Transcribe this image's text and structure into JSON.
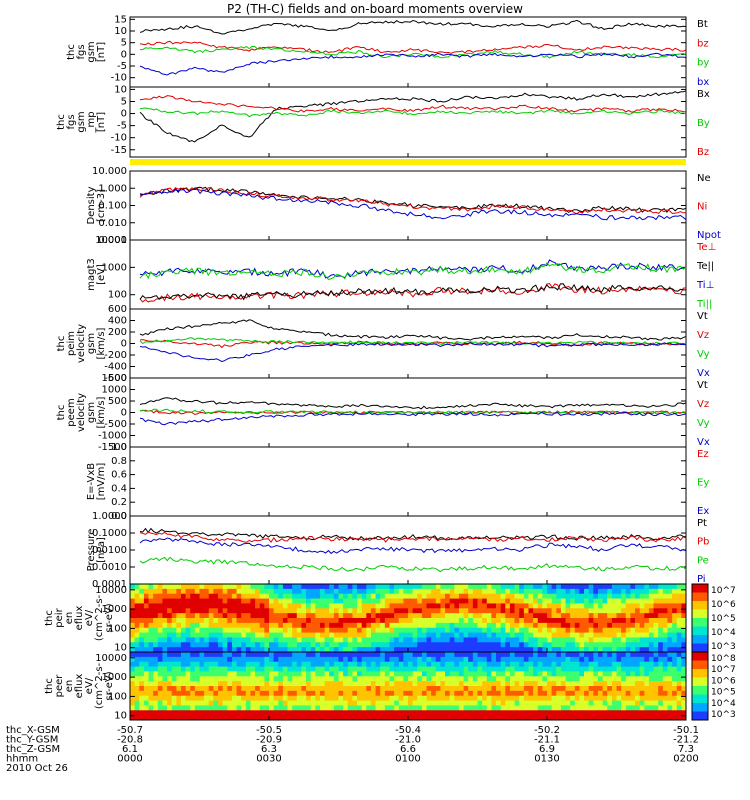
{
  "title": "P2 (TH-C) fields and on-board moments overview",
  "chart_data": [
    {
      "type": "line",
      "panel": "thc fgs gsm",
      "ylabel_lines": [
        "thc",
        "fgs",
        "gsm",
        "[nT]"
      ],
      "yticks": [
        "15",
        "10",
        "5",
        "0",
        "-5",
        "-10"
      ],
      "ylim": [
        -14,
        16
      ],
      "series": [
        {
          "name": "Bt",
          "color": "#000000",
          "values": [
            10,
            11,
            12,
            9,
            11,
            13,
            12,
            10,
            13,
            14,
            14,
            13,
            13,
            12,
            13,
            12,
            14,
            11,
            13,
            12,
            12
          ]
        },
        {
          "name": "bz",
          "color": "#e00000",
          "values": [
            4,
            5,
            5,
            3,
            2,
            3,
            2,
            1,
            3,
            1,
            2,
            1,
            1,
            2,
            3,
            4,
            2,
            3,
            3,
            2,
            2
          ]
        },
        {
          "name": "by",
          "color": "#00cc00",
          "values": [
            2,
            3,
            1,
            2,
            3,
            2,
            1,
            0,
            1,
            -1,
            0,
            -1,
            0,
            1,
            0,
            -1,
            1,
            0,
            0,
            -1,
            0
          ]
        },
        {
          "name": "bx",
          "color": "#0000cc",
          "values": [
            -5,
            -9,
            -6,
            -8,
            -4,
            -3,
            -2,
            -1,
            -1,
            0,
            -1,
            0,
            -1,
            0,
            -1,
            0,
            -1,
            0,
            -1,
            0,
            -1
          ]
        }
      ]
    },
    {
      "type": "line",
      "panel": "thc fgs gsm_mp",
      "ylabel_lines": [
        "thc",
        "fgs",
        "gsm",
        "_mp",
        "[nT]"
      ],
      "yticks": [
        "10",
        "5",
        "0",
        "-5",
        "-10",
        "-15"
      ],
      "ylim": [
        -18,
        11
      ],
      "series": [
        {
          "name": "Bx",
          "color": "#000000",
          "values": [
            0,
            -8,
            -12,
            -5,
            -10,
            2,
            3,
            4,
            5,
            6,
            6,
            5,
            7,
            6,
            8,
            7,
            6,
            8,
            7,
            8,
            9
          ]
        },
        {
          "name": "By",
          "color": "#00cc00",
          "values": [
            2,
            1,
            0,
            1,
            -1,
            0,
            -1,
            1,
            0,
            1,
            0,
            1,
            0,
            1,
            0,
            1,
            0,
            1,
            0,
            1,
            0
          ]
        },
        {
          "name": "Bz",
          "color": "#e00000",
          "values": [
            6,
            7,
            5,
            4,
            3,
            2,
            1,
            2,
            1,
            2,
            1,
            3,
            2,
            2,
            3,
            2,
            1,
            2,
            1,
            2,
            1
          ]
        }
      ]
    },
    {
      "type": "line",
      "panel": "Density",
      "ylabel_lines": [
        "Density",
        "[cm-3]"
      ],
      "yticks": [
        "10.000",
        "1.000",
        "0.100",
        "0.010",
        "0.001"
      ],
      "ylim": [
        0.001,
        10
      ],
      "log": true,
      "series": [
        {
          "name": "Ne",
          "color": "#000000",
          "values": [
            0.4,
            0.7,
            0.9,
            0.8,
            0.6,
            0.4,
            0.3,
            0.25,
            0.2,
            0.15,
            0.1,
            0.08,
            0.07,
            0.1,
            0.09,
            0.06,
            0.05,
            0.07,
            0.06,
            0.05,
            0.06
          ]
        },
        {
          "name": "Ni",
          "color": "#e00000",
          "values": [
            0.35,
            0.8,
            1.0,
            0.7,
            0.5,
            0.35,
            0.3,
            0.2,
            0.18,
            0.12,
            0.09,
            0.07,
            0.06,
            0.09,
            0.08,
            0.05,
            0.04,
            0.06,
            0.05,
            0.04,
            0.05
          ]
        },
        {
          "name": "Npot",
          "color": "#0000cc",
          "values": [
            0.4,
            0.6,
            0.7,
            0.5,
            0.35,
            0.25,
            0.2,
            0.15,
            0.1,
            0.05,
            0.03,
            0.02,
            0.03,
            0.05,
            0.04,
            0.03,
            0.03,
            0.02,
            0.02,
            0.02,
            0.02
          ]
        }
      ]
    },
    {
      "type": "line",
      "panel": "magt3",
      "ylabel_lines": [
        "magt3",
        "[eV]"
      ],
      "yticks": [
        "10000",
        "1000",
        "100"
      ],
      "ylim": [
        30,
        10000
      ],
      "log": true,
      "series": [
        {
          "name": "Te⊥",
          "color": "#e00000",
          "values": [
            60,
            80,
            90,
            70,
            80,
            100,
            90,
            110,
            120,
            130,
            110,
            140,
            130,
            150,
            120,
            200,
            160,
            140,
            180,
            150,
            140
          ]
        },
        {
          "name": "Te||",
          "color": "#000000",
          "values": [
            70,
            90,
            100,
            80,
            90,
            110,
            100,
            120,
            130,
            140,
            120,
            150,
            140,
            160,
            130,
            210,
            170,
            150,
            190,
            160,
            150
          ]
        },
        {
          "name": "Ti⊥",
          "color": "#0000cc",
          "values": [
            500,
            700,
            800,
            600,
            700,
            600,
            700,
            500,
            600,
            800,
            700,
            900,
            800,
            1000,
            700,
            1400,
            1000,
            900,
            1200,
            1000,
            900
          ]
        },
        {
          "name": "Ti||",
          "color": "#00cc00",
          "values": [
            450,
            650,
            750,
            550,
            650,
            550,
            650,
            450,
            550,
            700,
            650,
            800,
            700,
            900,
            650,
            1200,
            900,
            800,
            1100,
            900,
            800
          ]
        }
      ]
    },
    {
      "type": "line",
      "panel": "thc peim velocity gsm",
      "ylabel_lines": [
        "thc",
        "peim",
        "velocity",
        "gsm",
        "[km/s]"
      ],
      "yticks": [
        "600",
        "400",
        "200",
        "0",
        "-200",
        "-400",
        "-600"
      ],
      "ylim": [
        -600,
        600
      ],
      "series": [
        {
          "name": "Vt",
          "color": "#000000",
          "values": [
            150,
            250,
            300,
            350,
            400,
            250,
            200,
            150,
            120,
            100,
            150,
            100,
            80,
            100,
            120,
            100,
            150,
            120,
            100,
            80,
            100
          ]
        },
        {
          "name": "Vz",
          "color": "#e00000",
          "values": [
            50,
            30,
            0,
            -50,
            20,
            10,
            0,
            -10,
            20,
            0,
            -20,
            10,
            0,
            -10,
            20,
            0,
            -30,
            10,
            0,
            -10,
            0
          ]
        },
        {
          "name": "Vy",
          "color": "#00cc00",
          "values": [
            20,
            50,
            80,
            60,
            40,
            30,
            20,
            10,
            30,
            20,
            10,
            0,
            20,
            10,
            0,
            10,
            20,
            10,
            0,
            10,
            0
          ]
        },
        {
          "name": "Vx",
          "color": "#0000cc",
          "values": [
            -50,
            -150,
            -250,
            -300,
            -200,
            -100,
            -50,
            -30,
            -20,
            -10,
            -20,
            -30,
            -10,
            -20,
            -10,
            -50,
            -20,
            -10,
            -20,
            -10,
            -20
          ]
        }
      ]
    },
    {
      "type": "line",
      "panel": "thc peem velocity gsm",
      "ylabel_lines": [
        "thc",
        "peem",
        "velocity",
        "gsm",
        "[km/s]"
      ],
      "yticks": [
        "1500",
        "1000",
        "500",
        "0",
        "-500",
        "-1000",
        "-1500"
      ],
      "ylim": [
        -1500,
        1500
      ],
      "series": [
        {
          "name": "Vt",
          "color": "#000000",
          "values": [
            400,
            600,
            500,
            400,
            450,
            350,
            300,
            250,
            300,
            250,
            200,
            250,
            300,
            350,
            300,
            250,
            300,
            350,
            300,
            250,
            400
          ]
        },
        {
          "name": "Vz",
          "color": "#e00000",
          "values": [
            50,
            0,
            -50,
            20,
            0,
            -20,
            10,
            0,
            -10,
            20,
            0,
            -30,
            10,
            0,
            -10,
            0,
            20,
            0,
            -10,
            10,
            0
          ]
        },
        {
          "name": "Vy",
          "color": "#00cc00",
          "values": [
            100,
            80,
            60,
            40,
            20,
            30,
            10,
            20,
            10,
            0,
            10,
            20,
            10,
            0,
            10,
            20,
            0,
            10,
            20,
            0,
            10
          ]
        },
        {
          "name": "Vx",
          "color": "#0000cc",
          "values": [
            -300,
            -500,
            -400,
            -300,
            -200,
            -150,
            -100,
            -80,
            -60,
            -50,
            -80,
            -60,
            -50,
            -100,
            -60,
            -50,
            -80,
            -60,
            -50,
            -80,
            -100
          ]
        }
      ]
    },
    {
      "type": "line",
      "panel": "E=-VxB",
      "ylabel_lines": [
        "E=-VxB",
        "[mV/m]"
      ],
      "yticks": [
        "1.0",
        "0.8",
        "0.6",
        "0.4",
        "0.2",
        "0.0"
      ],
      "ylim": [
        0,
        1
      ],
      "series": [
        {
          "name": "Ez",
          "color": "#e00000",
          "values": []
        },
        {
          "name": "Ey",
          "color": "#00cc00",
          "values": []
        },
        {
          "name": "Ex",
          "color": "#0000cc",
          "values": []
        }
      ]
    },
    {
      "type": "line",
      "panel": "Pressure",
      "ylabel_lines": [
        "Pressure",
        "[nPa]"
      ],
      "yticks": [
        "1.0000",
        "0.1000",
        "0.0100",
        "0.0010",
        "0.0001"
      ],
      "ylim": [
        0.0001,
        1
      ],
      "log": true,
      "series": [
        {
          "name": "Pt",
          "color": "#000000",
          "values": [
            0.15,
            0.12,
            0.1,
            0.08,
            0.07,
            0.06,
            0.05,
            0.06,
            0.05,
            0.05,
            0.06,
            0.05,
            0.05,
            0.06,
            0.05,
            0.06,
            0.05,
            0.05,
            0.06,
            0.05,
            0.06
          ]
        },
        {
          "name": "Pb",
          "color": "#e00000",
          "values": [
            0.1,
            0.08,
            0.06,
            0.04,
            0.03,
            0.04,
            0.05,
            0.04,
            0.05,
            0.04,
            0.05,
            0.04,
            0.05,
            0.04,
            0.05,
            0.04,
            0.05,
            0.04,
            0.05,
            0.04,
            0.05
          ]
        },
        {
          "name": "Pe",
          "color": "#00cc00",
          "values": [
            0.002,
            0.003,
            0.002,
            0.002,
            0.0015,
            0.001,
            0.001,
            0.0008,
            0.0007,
            0.001,
            0.0008,
            0.0007,
            0.0008,
            0.001,
            0.0008,
            0.0012,
            0.0009,
            0.0008,
            0.001,
            0.0008,
            0.0009
          ]
        },
        {
          "name": "Pi",
          "color": "#0000cc",
          "values": [
            0.03,
            0.04,
            0.03,
            0.02,
            0.02,
            0.015,
            0.01,
            0.008,
            0.01,
            0.012,
            0.01,
            0.008,
            0.01,
            0.012,
            0.01,
            0.02,
            0.015,
            0.01,
            0.02,
            0.015,
            0.01
          ]
        }
      ]
    },
    {
      "type": "heatmap",
      "panel": "thc peir en eflux",
      "ylabel_lines": [
        "thc",
        "peir",
        "en",
        "eflux",
        "eV/",
        "(cm^2-s-",
        "sr-eV)"
      ],
      "yticks": [
        "10000",
        "1000",
        "100",
        "10"
      ],
      "ylim": [
        6,
        20000
      ],
      "colorbar_ticks": [
        "10^7",
        "10^6",
        "10^5",
        "10^4",
        "10^3"
      ]
    },
    {
      "type": "heatmap",
      "panel": "thc peer en eflux",
      "ylabel_lines": [
        "thc",
        "peer",
        "en",
        "eflux",
        "eV/",
        "(cm^2-s-",
        "sr-eV)"
      ],
      "yticks": [
        "10000",
        "1000",
        "100",
        "10"
      ],
      "ylim": [
        6,
        20000
      ],
      "colorbar_ticks": [
        "10^8",
        "10^7",
        "10^6",
        "10^5",
        "10^4",
        "10^3"
      ]
    }
  ],
  "footer": {
    "row_labels": [
      "thc_X-GSM",
      "thc_Y-GSM",
      "thc_Z-GSM",
      "hhmm",
      "2010 Oct 26"
    ],
    "columns": [
      [
        "-50.7",
        "-20.8",
        "6.1",
        "0000"
      ],
      [
        "-50.5",
        "-20.9",
        "6.3",
        "0030"
      ],
      [
        "-50.4",
        "-21.0",
        "6.6",
        "0100"
      ],
      [
        "-50.2",
        "-21.1",
        "6.9",
        "0130"
      ],
      [
        "-50.1",
        "-21.2",
        "7.3",
        "0200"
      ]
    ]
  }
}
